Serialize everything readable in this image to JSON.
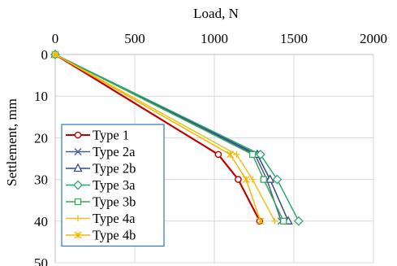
{
  "chart_data": {
    "type": "line",
    "xlabel": "Load, N",
    "ylabel": "Settlement, mm",
    "xlim": [
      0,
      2000
    ],
    "ylim": [
      0,
      50
    ],
    "x_axis_position": "top",
    "y_axis_inverted": true,
    "grid": true,
    "legend_position": "bottom-left",
    "x_ticks": [
      0,
      500,
      1000,
      1500,
      2000
    ],
    "y_ticks": [
      0,
      10,
      20,
      30,
      40,
      50
    ],
    "series": [
      {
        "name": "Type 1",
        "color": "#c00000",
        "marker": "circle",
        "points": [
          [
            0,
            0
          ],
          [
            1025,
            24
          ],
          [
            1150,
            30
          ],
          [
            1285,
            40
          ]
        ]
      },
      {
        "name": "Type 2a",
        "color": "#4a5c8c",
        "marker": "x",
        "points": [
          [
            0,
            0
          ],
          [
            1255,
            24
          ],
          [
            1330,
            30
          ],
          [
            1420,
            40
          ]
        ]
      },
      {
        "name": "Type 2b",
        "color": "#2f4d8c",
        "marker": "triangle",
        "points": [
          [
            0,
            0
          ],
          [
            1270,
            24
          ],
          [
            1350,
            30
          ],
          [
            1465,
            40
          ]
        ]
      },
      {
        "name": "Type 3a",
        "color": "#2aa872",
        "marker": "diamond",
        "points": [
          [
            0,
            0
          ],
          [
            1290,
            24
          ],
          [
            1395,
            30
          ],
          [
            1530,
            40
          ]
        ]
      },
      {
        "name": "Type 3b",
        "color": "#3aa85c",
        "marker": "square",
        "points": [
          [
            0,
            0
          ],
          [
            1240,
            24
          ],
          [
            1310,
            30
          ],
          [
            1435,
            40
          ]
        ]
      },
      {
        "name": "Type 4a",
        "color": "#f0c020",
        "marker": "plus",
        "points": [
          [
            0,
            0
          ],
          [
            1140,
            24
          ],
          [
            1240,
            30
          ],
          [
            1380,
            40
          ]
        ]
      },
      {
        "name": "Type 4b",
        "color": "#f0b800",
        "marker": "star",
        "points": [
          [
            0,
            0
          ],
          [
            1100,
            24
          ],
          [
            1200,
            30
          ],
          [
            1290,
            40
          ]
        ]
      }
    ]
  }
}
